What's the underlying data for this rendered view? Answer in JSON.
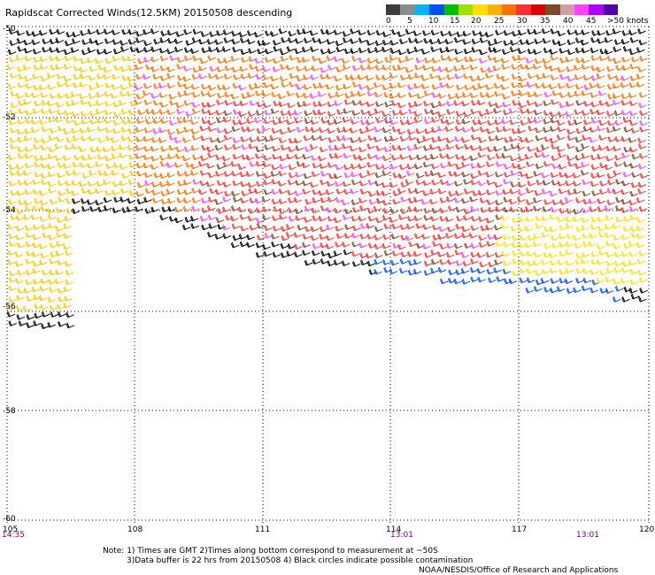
{
  "title": "Rapidscat Corrected Winds(12.5KM) 20150508 descending",
  "colorbar": {
    "colors": [
      "#3c3c3c",
      "#8c8c8c",
      "#00b4ff",
      "#0050ff",
      "#00c000",
      "#a0e000",
      "#ffe000",
      "#ffb000",
      "#ff7000",
      "#ff3030",
      "#e00000",
      "#7a4a2a",
      "#d0a0a0",
      "#ff40ff",
      "#b000ff",
      "#5000b0"
    ],
    "labels": [
      "0",
      "5",
      "10",
      "15",
      "20",
      "25",
      "30",
      "35",
      "40",
      "45",
      ">50 knots"
    ]
  },
  "lat_labels": [
    "-50",
    "-52",
    "-54",
    "-56",
    "-58",
    "-60"
  ],
  "lon_labels": [
    "105",
    "108",
    "111",
    "114",
    "117",
    "120"
  ],
  "time_labels": [
    "14:35",
    "13:01",
    "13:01"
  ],
  "notes": [
    "Note: 1) Times are GMT 2)Times along bottom correspond to measurement at ~50S",
    "3)Data buffer is 22 hrs from 20150508 4) Black circles indicate possible contamination",
    "NOAA/NESDIS/Office of Research and Applications"
  ]
}
